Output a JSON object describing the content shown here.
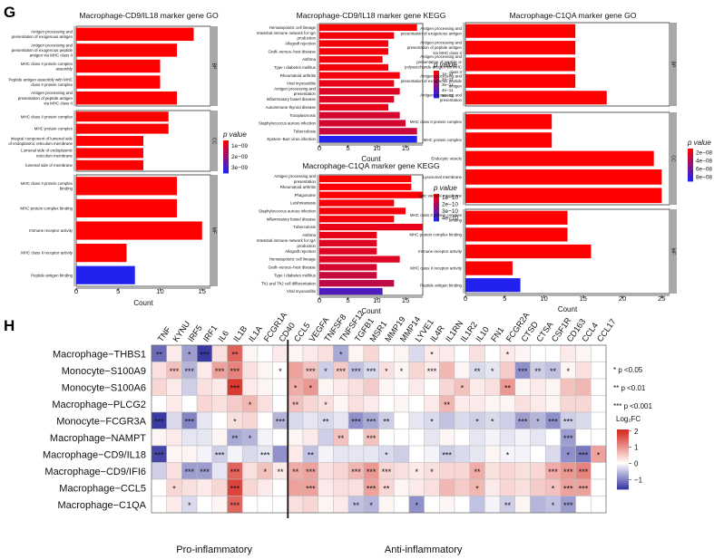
{
  "panel_labels": {
    "g": "G",
    "h": "H"
  },
  "colors": {
    "bar_low_p": "#ff0000",
    "bar_high_p": "#2222ee",
    "strip": "#a8a8a8",
    "heat_pos": "#d73027",
    "heat_neg": "#3a3aa0",
    "heat_mid": "#ffffff"
  },
  "chart_data": [
    {
      "type": "bar",
      "orientation": "horizontal",
      "title": "Macrophage-CD9/IL18 marker gene GO",
      "xlabel": "Count",
      "xlim": [
        0,
        16
      ],
      "xticks": [
        "0",
        "5",
        "10",
        "15"
      ],
      "xtick_values": [
        0,
        5,
        10,
        15
      ],
      "legend": {
        "title": "p value",
        "labels": [
          "1e−09",
          "2e−09",
          "3e−09"
        ]
      },
      "facets": [
        {
          "strip": "BP",
          "categories": [
            "Antigen processing and presentation of exogenous antigen",
            "Antigen processing and presentation of exogenous peptide antigen via MHC class II",
            "MHC class II protein complex assembly",
            "Peptide antigen assembly with MHC class II protein complex",
            "Antigen processing and presentation of peptide antigen via MHC class II"
          ],
          "values": [
            14,
            12,
            10,
            10,
            12
          ],
          "color_frac": [
            0,
            0,
            0,
            0,
            0
          ]
        },
        {
          "strip": "CC",
          "categories": [
            "MHC class II protein complex",
            "MHC protein complex",
            "Integral component of lumenal side of endoplasmic reticulum membrane",
            "Lumenal side of endoplasmic reticulum membrane",
            "lumenal side of membrane"
          ],
          "values": [
            11,
            11,
            8,
            8,
            8
          ],
          "color_frac": [
            0,
            0,
            0,
            0,
            0
          ]
        },
        {
          "strip": "MF",
          "categories": [
            "MHC class II protein complex binding",
            "MHC protein complex binding",
            "Immune receptor activity",
            "MHC class II receptor activity",
            "Peptide antigen binding"
          ],
          "values": [
            12,
            12,
            15,
            6,
            7
          ],
          "color_frac": [
            0,
            0,
            0,
            0,
            1
          ]
        }
      ]
    },
    {
      "type": "bar",
      "orientation": "horizontal",
      "title": "Macrophage-CD9/IL18 marker gene KEGG",
      "xlabel": "Count",
      "xlim": [
        0,
        18
      ],
      "xticks": [
        "0",
        "5",
        "10",
        "15"
      ],
      "xtick_values": [
        0,
        5,
        10,
        15
      ],
      "legend": {
        "title": "p value",
        "labels": [
          "1e−11",
          "2e−11",
          "3e−11",
          "4e−11",
          "5e−11"
        ]
      },
      "facets": [
        {
          "strip": "",
          "categories": [
            "Hematopoietic cell lineage",
            "Intestinal immune network for IgA production",
            "Allograft rejection",
            "Graft−versus−host disease",
            "Asthma",
            "Type I diabetes mellitus",
            "Rheumatoid arthritis",
            "Viral myocarditis",
            "Antigen processing and presentation",
            "Inflammatory bowel disease",
            "Autoimmune thyroid disease",
            "Toxoplasmosis",
            "Staphylococcus aureus infection",
            "Tuberculosis",
            "Epstein−Barr virus infection"
          ],
          "values": [
            17,
            13,
            12,
            12,
            11,
            12,
            14,
            13,
            14,
            13,
            12,
            14,
            15,
            17,
            17
          ],
          "color_frac": [
            0,
            0.05,
            0.05,
            0.05,
            0.05,
            0.05,
            0.05,
            0.1,
            0.15,
            0.15,
            0.1,
            0.2,
            0.2,
            0.25,
            1
          ]
        }
      ]
    },
    {
      "type": "bar",
      "orientation": "horizontal",
      "title": "Macrophage-C1QA marker gene KEGG",
      "xlabel": "Count",
      "xlim": [
        0,
        18
      ],
      "xticks": [
        "0",
        "5",
        "10",
        "15"
      ],
      "xtick_values": [
        0,
        5,
        10,
        15
      ],
      "legend": {
        "title": "p value",
        "labels": [
          "1e−10",
          "2e−10",
          "3e−10",
          "4e−10"
        ]
      },
      "facets": [
        {
          "strip": "",
          "categories": [
            "Antigen processing and presentation",
            "Rheumatoid arthritis",
            "Phagosome",
            "Leishmaniasis",
            "Staphylococcus aureus infection",
            "Inflammatory bowel disease",
            "Tuberculosis",
            "Asthma",
            "Intestinal immune network for IgA production",
            "Allograft rejection",
            "Hematopoietic cell lineage",
            "Graft−versus−host disease",
            "Type I diabetes mellitus",
            "Th1 and Th2 cell differentiation",
            "Viral myocarditis"
          ],
          "values": [
            16,
            16,
            18,
            13,
            15,
            13,
            18,
            10,
            10,
            10,
            14,
            10,
            10,
            13,
            11
          ],
          "color_frac": [
            0,
            0,
            0,
            0.05,
            0.05,
            0.05,
            0.1,
            0.1,
            0.15,
            0.15,
            0.15,
            0.2,
            0.25,
            0.3,
            0.8
          ]
        }
      ]
    },
    {
      "type": "bar",
      "orientation": "horizontal",
      "title": "Macrophage-C1QA marker gene GO",
      "xlabel": "Count",
      "xlim": [
        0,
        26
      ],
      "xticks": [
        "0",
        "5",
        "10",
        "15",
        "20",
        "25"
      ],
      "xtick_values": [
        0,
        5,
        10,
        15,
        20,
        25
      ],
      "legend": {
        "title": "p value",
        "labels": [
          "2e−08",
          "4e−08",
          "6e−08",
          "8e−08"
        ]
      },
      "facets": [
        {
          "strip": "BP",
          "categories": [
            "Antigen processing and presentation of exogenous antigen",
            "Antigen processing and presentation of peptide antigen via MHC class II",
            "Antigen processing and presentation of peptide or polysaccharide antigen via MHC class II",
            "Antigen processing and presentation of exogenous peptide antigen",
            "Antigen processing and presentation"
          ],
          "values": [
            14,
            14,
            14,
            14,
            18
          ],
          "color_frac": [
            0,
            0,
            0,
            0,
            0
          ]
        },
        {
          "strip": "CC",
          "categories": [
            "MHC class II protein complex",
            "MHC protein complex",
            "Endocytic vesicle",
            "Lysosomal membrane",
            "Lytic vacuole membrane"
          ],
          "values": [
            11,
            11,
            24,
            25,
            25
          ],
          "color_frac": [
            0,
            0,
            0,
            0,
            0
          ]
        },
        {
          "strip": "MF",
          "categories": [
            "MHC class II protein complex binding",
            "MHC protein complex binding",
            "Immune receptor activity",
            "MHC class II receptor activity",
            "Peptide antigen binding"
          ],
          "values": [
            13,
            13,
            16,
            6,
            7
          ],
          "color_frac": [
            0,
            0,
            0,
            0,
            1
          ]
        }
      ]
    },
    {
      "type": "heatmap",
      "title": "",
      "columns": [
        "TNF",
        "KYNU",
        "IRF5",
        "IRF1",
        "IL6",
        "IL1B",
        "IL1A",
        "FCGR1A",
        "CD40",
        "CCL5",
        "VEGFA",
        "TNFSF8",
        "TNFSF12",
        "TGFB1",
        "MSR1",
        "MMP19",
        "MMP14",
        "LYVE1",
        "IL4R",
        "IL1RN",
        "IL1R2",
        "IL10",
        "FN1",
        "FCGR2A",
        "CTSD",
        "CTSA",
        "CSF1R",
        "CD163",
        "CCL4",
        "CCL17"
      ],
      "rows": [
        "Macrophage−THBS1",
        "Monocyte−S100A9",
        "Monocyte−S100A6",
        "Macrophage−PLCG2",
        "Monocyte−FCGR3A",
        "Macrophage−NAMPT",
        "Macrophage−CD9/IL18",
        "Macrophage−CD9/IFI6",
        "Macrophage−CCL5",
        "Macrophage−C1QA"
      ],
      "values": [
        [
          -1.2,
          0.2,
          -0.8,
          -2.0,
          0.3,
          1.5,
          0.1,
          0.0,
          0.2,
          0.1,
          0.2,
          0.3,
          -0.7,
          0.1,
          0.4,
          0.0,
          0.1,
          -0.3,
          0.2,
          0.2,
          0.0,
          0.3,
          0.0,
          0.2,
          0.1,
          0.0,
          0.0,
          0.2,
          0.1,
          0.0
        ],
        [
          0.3,
          0.6,
          -0.6,
          0.2,
          0.9,
          1.2,
          0.3,
          0.1,
          0.0,
          0.9,
          0.6,
          -0.4,
          0.5,
          -0.5,
          -0.3,
          0.3,
          0.1,
          0.4,
          0.2,
          0.7,
          0.1,
          -0.3,
          -0.2,
          0.5,
          -0.9,
          -0.4,
          -0.5,
          0.1,
          0.3,
          0.0
        ],
        [
          0.4,
          0.2,
          -0.4,
          0.3,
          0.2,
          1.9,
          0.2,
          0.1,
          0.0,
          0.8,
          1.0,
          0.1,
          0.2,
          0.3,
          0.5,
          0.1,
          0.0,
          0.2,
          0.0,
          0.4,
          0.6,
          0.2,
          0.3,
          1.0,
          0.1,
          0.2,
          0.1,
          0.6,
          0.7,
          0.0
        ],
        [
          0.0,
          0.2,
          0.0,
          0.4,
          0.3,
          0.5,
          0.7,
          0.3,
          0.0,
          0.6,
          0.4,
          0.3,
          0.1,
          0.3,
          0.2,
          0.0,
          0.1,
          0.0,
          0.2,
          0.7,
          0.2,
          0.2,
          0.1,
          0.1,
          0.3,
          0.2,
          0.1,
          0.4,
          0.4,
          0.0
        ],
        [
          -1.6,
          -0.3,
          -1.0,
          -0.2,
          0.0,
          0.3,
          0.4,
          0.0,
          -0.6,
          -0.3,
          -0.2,
          -0.3,
          -0.2,
          -0.9,
          -0.7,
          -0.4,
          0.0,
          -0.2,
          -0.3,
          -0.5,
          -0.3,
          -0.4,
          -0.3,
          -0.4,
          -0.8,
          -0.6,
          -0.9,
          -0.4,
          -0.3,
          0.0
        ],
        [
          0.1,
          0.2,
          -0.2,
          -0.2,
          0.1,
          -0.7,
          -0.6,
          -0.1,
          0.0,
          0.1,
          0.2,
          -0.4,
          0.6,
          0.0,
          0.6,
          0.0,
          0.0,
          0.0,
          -0.2,
          0.1,
          0.0,
          -0.2,
          -0.1,
          -0.2,
          -0.1,
          -0.2,
          0.0,
          -0.8,
          0.0,
          0.0
        ],
        [
          -1.5,
          0.1,
          0.1,
          -0.1,
          -0.4,
          -0.1,
          -0.3,
          -0.2,
          -0.9,
          0.2,
          -0.5,
          -0.1,
          -0.2,
          -0.2,
          -0.2,
          -0.3,
          -0.4,
          0.0,
          -0.1,
          -0.4,
          -0.3,
          -0.2,
          0.1,
          -0.1,
          -0.1,
          0.0,
          -0.3,
          -0.9,
          -1.1,
          0.9
        ],
        [
          -0.4,
          0.3,
          -0.8,
          -0.8,
          -0.2,
          1.5,
          0.3,
          0.6,
          0.2,
          0.8,
          0.9,
          0.3,
          0.4,
          0.7,
          1.0,
          0.4,
          0.3,
          0.2,
          0.3,
          0.4,
          0.4,
          0.8,
          0.3,
          0.4,
          0.3,
          0.4,
          0.8,
          1.0,
          1.2,
          0.0
        ],
        [
          0.0,
          0.4,
          0.3,
          0.2,
          0.4,
          1.8,
          0.4,
          0.2,
          0.0,
          0.9,
          0.9,
          0.2,
          0.3,
          0.3,
          0.9,
          0.4,
          0.1,
          0.2,
          0.3,
          0.7,
          0.5,
          0.7,
          0.2,
          0.4,
          0.3,
          0.5,
          0.6,
          0.9,
          0.9,
          0.0
        ],
        [
          0.0,
          0.2,
          -0.3,
          0.0,
          0.1,
          1.5,
          0.0,
          0.0,
          0.0,
          0.3,
          0.4,
          0.1,
          0.2,
          -0.5,
          -0.6,
          0.1,
          0.0,
          -0.9,
          0.0,
          0.1,
          0.0,
          -0.5,
          -0.1,
          -0.4,
          0.1,
          -0.6,
          -0.5,
          -0.8,
          0.0,
          0.0
        ]
      ],
      "stars": [
        [
          "**",
          "",
          "*",
          "***",
          "",
          "**",
          "",
          "",
          "",
          "",
          "",
          "",
          "*",
          "",
          "",
          "",
          "",
          "",
          "*",
          "",
          "",
          "",
          "",
          "*",
          "",
          "",
          "",
          "",
          "",
          ""
        ],
        [
          "",
          "***",
          "***",
          "",
          "***",
          "***",
          "",
          "",
          "*",
          "",
          "***",
          "*",
          "***",
          "***",
          "***",
          "*",
          "*",
          "",
          "***",
          "",
          "",
          "**",
          "*",
          "",
          "***",
          "**",
          "**",
          "*",
          "",
          ""
        ],
        [
          "",
          "",
          "",
          "",
          "",
          "***",
          "",
          "",
          "",
          "*",
          "*",
          "",
          "",
          "",
          "",
          "",
          "",
          "",
          "",
          "",
          "*",
          "",
          "",
          "**",
          "",
          "",
          "",
          "",
          "",
          ""
        ],
        [
          "",
          "",
          "",
          "",
          "",
          "",
          "*",
          "",
          "",
          "**",
          "",
          "*",
          "",
          "",
          "",
          "",
          "",
          "",
          "",
          "**",
          "",
          "",
          "",
          "",
          "",
          "",
          "",
          "",
          "",
          ""
        ],
        [
          "***",
          "",
          "***",
          "",
          "",
          "*",
          "",
          "",
          "***",
          "",
          "",
          "**",
          "",
          "***",
          "***",
          "**",
          "",
          "",
          "*",
          "",
          "",
          "*",
          "*",
          "",
          "***",
          "*",
          "***",
          "***",
          "",
          ""
        ],
        [
          "",
          "",
          "",
          "",
          "",
          "**",
          "*",
          "",
          "",
          "",
          "",
          "",
          "**",
          "",
          "***",
          "",
          "",
          "",
          "",
          "",
          "",
          "",
          "",
          "",
          "",
          "",
          "",
          "***",
          "",
          ""
        ],
        [
          "***",
          "",
          "",
          "",
          "***",
          "",
          "",
          "***",
          "",
          "",
          "**",
          "",
          "",
          "",
          "",
          "*",
          "",
          "",
          "",
          "***",
          "",
          "",
          "",
          "*",
          "",
          "",
          "",
          "*",
          "***",
          "*"
        ],
        [
          "",
          "",
          "***",
          "***",
          "",
          "***",
          "",
          "*",
          "**",
          "**",
          "***",
          "",
          "",
          "***",
          "***",
          "***",
          "",
          "*",
          "*",
          "",
          "",
          "**",
          "",
          "",
          "",
          "",
          "***",
          "***",
          "***",
          ""
        ],
        [
          "",
          "*",
          "",
          "",
          "",
          "***",
          "",
          "",
          "",
          "",
          "***",
          "",
          "",
          "",
          "***",
          "**",
          "",
          "",
          "",
          "",
          "",
          "*",
          "",
          "",
          "",
          "",
          "*",
          "***",
          "***",
          ""
        ],
        [
          "",
          "",
          "*",
          "",
          "",
          "***",
          "",
          "",
          "",
          "",
          "",
          "",
          "",
          "**",
          "*",
          "",
          "",
          "*",
          "",
          "",
          "",
          "",
          "",
          "**",
          "",
          "",
          "*",
          "***",
          "",
          ""
        ]
      ],
      "group_labels": [
        "Pro-inflammatory",
        "Anti-inflammatory"
      ],
      "group_split_after": "CD40",
      "significance_legend": [
        "* p <0.05",
        "** p <0.01",
        "*** p <0.001"
      ],
      "colorbar": {
        "title": "Log₂FC",
        "ticks": [
          "2",
          "1",
          "0",
          "−1"
        ],
        "tick_values": [
          2,
          1,
          0,
          -1
        ],
        "range": [
          -1.6,
          2.1
        ]
      }
    }
  ]
}
